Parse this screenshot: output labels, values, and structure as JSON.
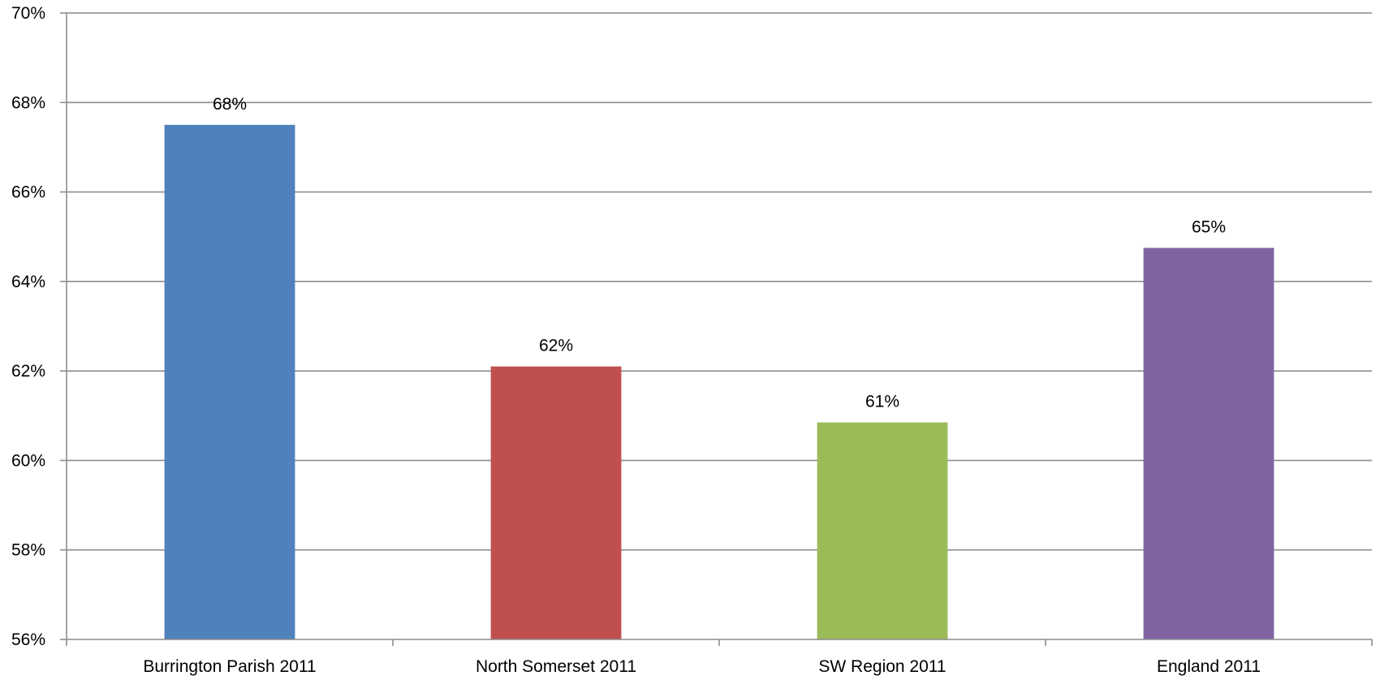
{
  "chart_data": {
    "type": "bar",
    "title": "",
    "xlabel": "",
    "ylabel": "",
    "categories": [
      "Burrington Parish 2011",
      "North Somerset 2011",
      "SW Region 2011",
      "England 2011"
    ],
    "values": [
      67.5,
      62.1,
      60.85,
      64.75
    ],
    "data_labels": [
      "68%",
      "62%",
      "61%",
      "65%"
    ],
    "colors": [
      "#4F81BD",
      "#C0504D",
      "#9BBB59",
      "#8064A2"
    ],
    "ylim": [
      56,
      70
    ],
    "yticks": [
      56,
      58,
      60,
      62,
      64,
      66,
      68,
      70
    ],
    "ytick_labels": [
      "56%",
      "58%",
      "60%",
      "62%",
      "64%",
      "66%",
      "68%",
      "70%"
    ],
    "grid": true,
    "legend": "none"
  }
}
